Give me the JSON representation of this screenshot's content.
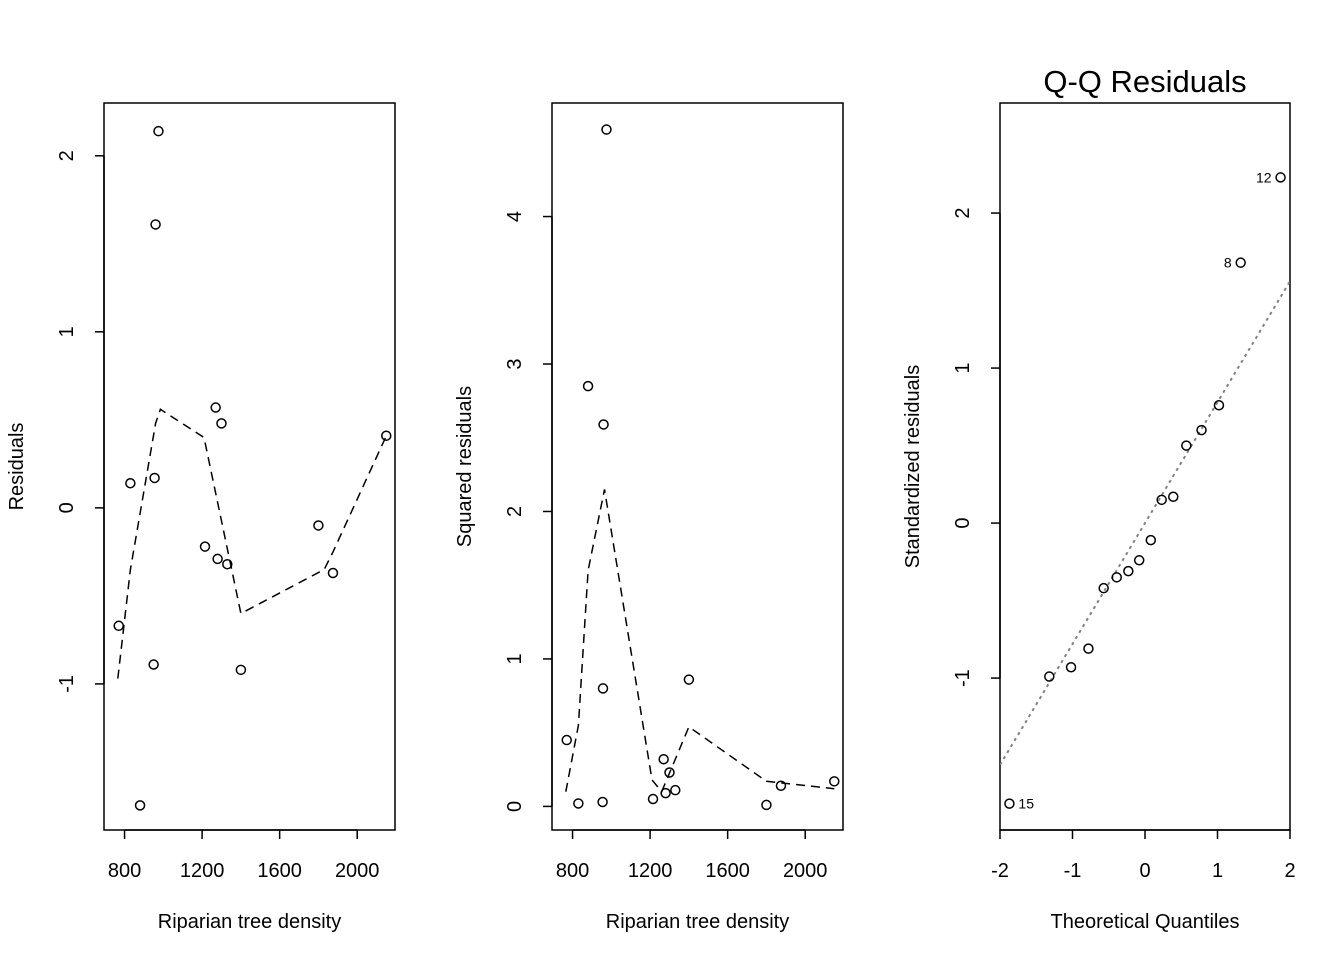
{
  "chart_data": [
    {
      "type": "scatter",
      "title": "",
      "xlabel": "Riparian tree density",
      "ylabel": "Residuals",
      "xlim": [
        694,
        2195
      ],
      "ylim": [
        -1.83,
        2.3
      ],
      "xticks": [
        800,
        1200,
        1600,
        2000
      ],
      "yticks": [
        -1,
        0,
        1,
        2
      ],
      "points": [
        {
          "x": 770,
          "y": -0.67
        },
        {
          "x": 830,
          "y": 0.14
        },
        {
          "x": 880,
          "y": -1.69
        },
        {
          "x": 950,
          "y": -0.89
        },
        {
          "x": 955,
          "y": 0.17
        },
        {
          "x": 960,
          "y": 1.61
        },
        {
          "x": 975,
          "y": 2.14
        },
        {
          "x": 1215,
          "y": -0.22
        },
        {
          "x": 1270,
          "y": 0.57
        },
        {
          "x": 1280,
          "y": -0.29
        },
        {
          "x": 1300,
          "y": 0.48
        },
        {
          "x": 1330,
          "y": -0.32
        },
        {
          "x": 1400,
          "y": -0.92
        },
        {
          "x": 1800,
          "y": -0.1
        },
        {
          "x": 1875,
          "y": -0.37
        },
        {
          "x": 2150,
          "y": 0.41
        }
      ],
      "smooth_line": [
        {
          "x": 765,
          "y": -0.97
        },
        {
          "x": 830,
          "y": -0.35
        },
        {
          "x": 960,
          "y": 0.48
        },
        {
          "x": 985,
          "y": 0.56
        },
        {
          "x": 1210,
          "y": 0.4
        },
        {
          "x": 1400,
          "y": -0.6
        },
        {
          "x": 1830,
          "y": -0.35
        },
        {
          "x": 1875,
          "y": -0.25
        },
        {
          "x": 2155,
          "y": 0.42
        }
      ],
      "line_style": "dashed"
    },
    {
      "type": "scatter",
      "title": "",
      "xlabel": "Riparian tree density",
      "ylabel": "Squared residuals",
      "xlim": [
        694,
        2195
      ],
      "ylim": [
        -0.16,
        4.77
      ],
      "xticks": [
        800,
        1200,
        1600,
        2000
      ],
      "yticks": [
        0,
        1,
        2,
        3,
        4
      ],
      "points": [
        {
          "x": 770,
          "y": 0.45
        },
        {
          "x": 830,
          "y": 0.02
        },
        {
          "x": 880,
          "y": 2.85
        },
        {
          "x": 955,
          "y": 0.03
        },
        {
          "x": 957,
          "y": 0.8
        },
        {
          "x": 960,
          "y": 2.59
        },
        {
          "x": 975,
          "y": 4.59
        },
        {
          "x": 1215,
          "y": 0.05
        },
        {
          "x": 1270,
          "y": 0.32
        },
        {
          "x": 1280,
          "y": 0.09
        },
        {
          "x": 1300,
          "y": 0.23
        },
        {
          "x": 1330,
          "y": 0.11
        },
        {
          "x": 1400,
          "y": 0.86
        },
        {
          "x": 1800,
          "y": 0.01
        },
        {
          "x": 1875,
          "y": 0.14
        },
        {
          "x": 2150,
          "y": 0.17
        }
      ],
      "smooth_line": [
        {
          "x": 765,
          "y": 0.1
        },
        {
          "x": 830,
          "y": 0.55
        },
        {
          "x": 880,
          "y": 1.6
        },
        {
          "x": 965,
          "y": 2.15
        },
        {
          "x": 1210,
          "y": 0.18
        },
        {
          "x": 1260,
          "y": 0.1
        },
        {
          "x": 1400,
          "y": 0.54
        },
        {
          "x": 1800,
          "y": 0.17
        },
        {
          "x": 2150,
          "y": 0.12
        }
      ],
      "line_style": "dashed"
    },
    {
      "type": "scatter",
      "title": "Q-Q Residuals",
      "xlabel": "Theoretical Quantiles",
      "ylabel": "Standardized residuals",
      "xlim": [
        -2,
        2
      ],
      "ylim": [
        -1.98,
        2.71
      ],
      "xticks": [
        -2,
        -1,
        0,
        1,
        2
      ],
      "yticks": [
        -1,
        0,
        1,
        2
      ],
      "points": [
        {
          "x": -1.87,
          "y": -1.81,
          "label": "15"
        },
        {
          "x": -1.32,
          "y": -0.99
        },
        {
          "x": -1.02,
          "y": -0.93
        },
        {
          "x": -0.78,
          "y": -0.81
        },
        {
          "x": -0.57,
          "y": -0.42
        },
        {
          "x": -0.39,
          "y": -0.35
        },
        {
          "x": -0.23,
          "y": -0.31
        },
        {
          "x": -0.08,
          "y": -0.24
        },
        {
          "x": 0.08,
          "y": -0.11
        },
        {
          "x": 0.23,
          "y": 0.15
        },
        {
          "x": 0.39,
          "y": 0.17
        },
        {
          "x": 0.57,
          "y": 0.5
        },
        {
          "x": 0.78,
          "y": 0.6
        },
        {
          "x": 1.02,
          "y": 0.76
        },
        {
          "x": 1.32,
          "y": 1.68,
          "label": "8"
        },
        {
          "x": 1.87,
          "y": 2.23,
          "label": "12"
        }
      ],
      "reference_line": {
        "intercept": 0.0,
        "slope": 0.78,
        "style": "dotted",
        "color": "#808080"
      }
    }
  ]
}
